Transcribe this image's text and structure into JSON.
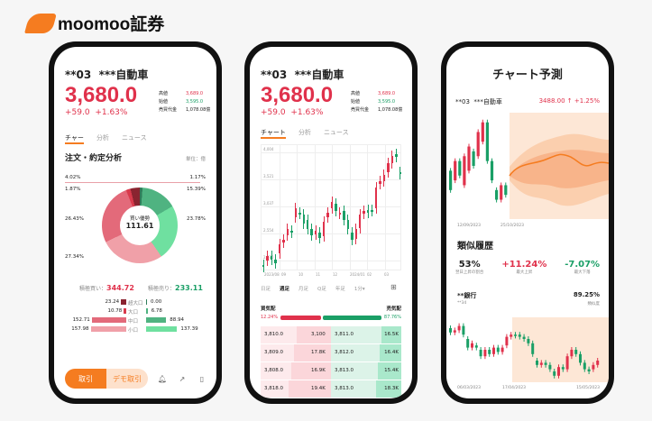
{
  "brand": {
    "name": "moomoo証券",
    "color": "#f57c20"
  },
  "colors": {
    "up": "#e0314b",
    "down": "#1a9f66",
    "accent": "#f57c20"
  },
  "stock": {
    "symbol": "**03",
    "name": "***自動車",
    "price": "3,680.0",
    "change": "+59.0",
    "change_pct": "+1.63%",
    "stats": [
      {
        "label": "高値",
        "value": "3,689.0"
      },
      {
        "label": "始値",
        "value": "3,595.0"
      },
      {
        "label": "売買代金",
        "value": "1,078.08億"
      }
    ]
  },
  "tabs": [
    "チャート",
    "分析",
    "ニュース"
  ],
  "phone1": {
    "tab_active_short": "チャー",
    "section_title": "注文・約定分析",
    "unit": "単位：億",
    "donut": {
      "center_label": "買い優勢",
      "center_value": "111.61",
      "segments": [
        {
          "pct": 1.17,
          "label": "1.17%",
          "color": "#2f7d5a"
        },
        {
          "pct": 15.39,
          "label": "15.39%",
          "color": "#4fb381"
        },
        {
          "pct": 23.78,
          "label": "23.78%",
          "color": "#6fe0a0"
        },
        {
          "pct": 27.34,
          "label": "27.34%",
          "color": "#f0a0a8"
        },
        {
          "pct": 26.43,
          "label": "26.43%",
          "color": "#e36a7a"
        },
        {
          "pct": 1.87,
          "label": "1.87%",
          "color": "#d93a4c"
        },
        {
          "pct": 4.02,
          "label": "4.02%",
          "color": "#8a2430"
        }
      ]
    },
    "buy_label": "積極買い：",
    "buy_value": "344.72",
    "sell_label": "積極売り：",
    "sell_value": "233.11",
    "flows": [
      {
        "size": "超大口",
        "buy": "23.24",
        "sell": "0.00"
      },
      {
        "size": "大口",
        "buy": "10.78",
        "sell": "6.78"
      },
      {
        "size": "中口",
        "buy": "152.71",
        "sell": "88.94"
      },
      {
        "size": "小口",
        "buy": "157.98",
        "sell": "137.39"
      }
    ],
    "trade_button": "取引",
    "demo_button": "デモ取引"
  },
  "phone2": {
    "y_ticks": [
      "4,004",
      "3,521",
      "3,037",
      "2,554",
      "2,070"
    ],
    "x_ticks": [
      "2023/08",
      "09",
      "10",
      "11",
      "12",
      "2024/01",
      "02",
      "03"
    ],
    "periods": [
      "日足",
      "週足",
      "月足",
      "Q足",
      "年足",
      "1分▾"
    ],
    "active_period": "週足",
    "sell_label": "買気配",
    "buy_label": "売気配",
    "sell_pct": "12.24%",
    "buy_pct": "87.76%",
    "bid_ratio": 0.1224,
    "orderbook": [
      {
        "bid": "3,810.0",
        "bid_qty": "3,100",
        "ask": "3,811.0",
        "ask_qty": "16.5K"
      },
      {
        "bid": "3,809.0",
        "bid_qty": "17.8K",
        "ask": "3,812.0",
        "ask_qty": "16.4K"
      },
      {
        "bid": "3,808.0",
        "bid_qty": "16.9K",
        "ask": "3,813.0",
        "ask_qty": "15.4K"
      },
      {
        "bid": "3,818.0",
        "bid_qty": "19.4K",
        "ask": "3,813.0",
        "ask_qty": "18.3K"
      }
    ],
    "candles": [
      [
        2100,
        2080
      ],
      [
        2180,
        2260
      ],
      [
        2250,
        2200
      ],
      [
        2200,
        2140
      ],
      [
        2300,
        2450
      ],
      [
        2480,
        2530
      ],
      [
        2600,
        2700
      ],
      [
        2680,
        2650
      ],
      [
        2900,
        3050
      ],
      [
        2980,
        2960
      ],
      [
        2950,
        2800
      ],
      [
        2850,
        2700
      ],
      [
        2700,
        2600
      ],
      [
        2620,
        2680
      ],
      [
        2650,
        2550
      ],
      [
        2580,
        2820
      ],
      [
        2900,
        2980
      ],
      [
        3050,
        3150
      ],
      [
        3120,
        3000
      ],
      [
        2960,
        2980
      ],
      [
        3000,
        2850
      ],
      [
        2860,
        2700
      ],
      [
        2650,
        2520
      ],
      [
        2540,
        2700
      ],
      [
        2720,
        2950
      ],
      [
        2960,
        3000
      ],
      [
        3020,
        2980
      ],
      [
        3020,
        3000
      ],
      [
        3050,
        3400
      ],
      [
        3450,
        3500
      ],
      [
        3500,
        3600
      ],
      [
        3650,
        3800
      ],
      [
        3800,
        3920
      ],
      [
        3950,
        3900
      ],
      [
        3650,
        3620
      ]
    ]
  },
  "phone3": {
    "title": "チャート予測",
    "forecast_price": "3488.00",
    "forecast_arrow": "↑",
    "forecast_pct": "+1.25%",
    "dates": [
      "12/09/2023",
      "25/10/2023"
    ],
    "similar_title": "類似履歴",
    "stats": [
      {
        "value": "53%",
        "label": "翌日上昇の割合"
      },
      {
        "value": "+11.24%",
        "label": "最大上昇"
      },
      {
        "value": "-7.07%",
        "label": "最大下落"
      }
    ],
    "match_name": "**銀行",
    "match_code": "**34",
    "match_pct": "89.25%",
    "match_label": "類似度",
    "dates2": [
      "06/03/2023",
      "17/04/2023",
      "15/05/2023"
    ],
    "candles": [
      [
        50,
        46
      ],
      [
        48,
        52
      ],
      [
        52,
        49
      ],
      [
        47,
        53
      ],
      [
        50,
        55
      ],
      [
        54,
        51
      ],
      [
        53,
        58
      ],
      [
        56,
        60
      ],
      [
        60,
        52
      ],
      [
        52,
        48
      ],
      [
        46,
        44
      ],
      [
        44,
        47
      ],
      [
        47,
        45
      ]
    ],
    "candles2": [
      [
        70,
        66
      ],
      [
        66,
        68
      ],
      [
        68,
        72
      ],
      [
        72,
        64
      ],
      [
        60,
        52
      ],
      [
        52,
        56
      ],
      [
        54,
        52
      ],
      [
        50,
        44
      ],
      [
        44,
        50
      ],
      [
        50,
        46
      ],
      [
        46,
        52
      ],
      [
        52,
        48
      ],
      [
        48,
        52
      ],
      [
        54,
        62
      ],
      [
        62,
        64
      ],
      [
        64,
        63
      ],
      [
        64,
        62
      ],
      [
        62,
        60
      ],
      [
        60,
        56
      ],
      [
        56,
        46
      ],
      [
        40,
        36
      ],
      [
        36,
        38
      ],
      [
        38,
        36
      ],
      [
        36,
        32
      ],
      [
        30,
        26
      ],
      [
        26,
        34
      ],
      [
        34,
        32
      ],
      [
        32,
        44
      ],
      [
        44,
        50
      ],
      [
        50,
        46
      ],
      [
        46,
        38
      ],
      [
        38,
        32
      ],
      [
        32,
        30
      ],
      [
        32,
        36
      ],
      [
        36,
        40
      ]
    ]
  }
}
